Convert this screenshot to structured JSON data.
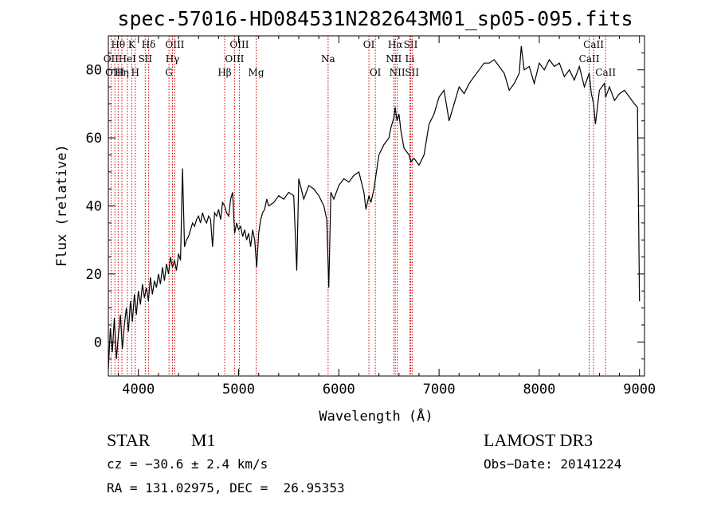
{
  "chart_data": {
    "type": "line",
    "title": "spec-57016-HD084531N282643M01_sp05-095.fits",
    "xlabel": "Wavelength (Å)",
    "ylabel": "Flux (relative)",
    "xlim": [
      3700,
      9050
    ],
    "ylim": [
      -10,
      90
    ],
    "xticks": [
      4000,
      5000,
      6000,
      7000,
      8000,
      9000
    ],
    "yticks": [
      0,
      20,
      40,
      60,
      80
    ],
    "grid": false,
    "series": [
      {
        "x": [
          3700,
          3720,
          3740,
          3760,
          3780,
          3800,
          3820,
          3840,
          3860,
          3880,
          3900,
          3920,
          3940,
          3960,
          3980,
          4000,
          4020,
          4040,
          4060,
          4080,
          4100,
          4120,
          4140,
          4160,
          4180,
          4200,
          4220,
          4240,
          4260,
          4280,
          4300,
          4320,
          4340,
          4360,
          4380,
          4400,
          4420,
          4440,
          4460,
          4480,
          4500,
          4520,
          4540,
          4560,
          4580,
          4600,
          4620,
          4640,
          4660,
          4680,
          4700,
          4720,
          4740,
          4760,
          4780,
          4800,
          4820,
          4840,
          4860,
          4880,
          4900,
          4920,
          4940,
          4960,
          4980,
          5000,
          5020,
          5040,
          5060,
          5080,
          5100,
          5120,
          5140,
          5160,
          5180,
          5200,
          5220,
          5240,
          5260,
          5280,
          5300,
          5350,
          5400,
          5450,
          5500,
          5550,
          5580,
          5600,
          5650,
          5700,
          5750,
          5800,
          5850,
          5880,
          5900,
          5920,
          5950,
          6000,
          6050,
          6100,
          6150,
          6200,
          6250,
          6270,
          6300,
          6320,
          6350,
          6400,
          6450,
          6500,
          6520,
          6550,
          6562,
          6580,
          6600,
          6620,
          6650,
          6700,
          6720,
          6750,
          6800,
          6850,
          6900,
          6950,
          7000,
          7050,
          7100,
          7150,
          7200,
          7250,
          7300,
          7350,
          7400,
          7450,
          7500,
          7550,
          7600,
          7650,
          7700,
          7750,
          7800,
          7820,
          7850,
          7900,
          7950,
          8000,
          8050,
          8100,
          8150,
          8200,
          8250,
          8300,
          8350,
          8400,
          8450,
          8498,
          8520,
          8542,
          8560,
          8600,
          8650,
          8662,
          8700,
          8750,
          8800,
          8850,
          8900,
          8950,
          8980,
          9000
        ],
        "y": [
          -8,
          4,
          -3,
          7,
          -5,
          2,
          8,
          -2,
          5,
          10,
          3,
          12,
          6,
          14,
          8,
          15,
          11,
          17,
          13,
          16,
          12,
          19,
          14,
          18,
          16,
          20,
          17,
          22,
          18,
          23,
          20,
          25,
          22,
          24,
          21,
          26,
          24,
          51,
          28,
          30,
          31,
          33,
          35,
          34,
          36,
          37,
          35,
          38,
          36,
          35,
          37,
          36,
          28,
          38,
          37,
          39,
          36,
          41,
          40,
          38,
          37,
          42,
          44,
          32,
          35,
          33,
          34,
          31,
          33,
          30,
          32,
          28,
          33,
          30,
          22,
          32,
          36,
          38,
          39,
          42,
          40,
          41,
          43,
          42,
          44,
          43,
          21,
          48,
          42,
          46,
          45,
          43,
          40,
          36,
          16,
          44,
          42,
          46,
          48,
          47,
          49,
          50,
          44,
          39,
          43,
          41,
          45,
          55,
          58,
          60,
          63,
          66,
          69,
          65,
          67,
          62,
          57,
          55,
          53,
          54,
          52,
          55,
          64,
          67,
          72,
          74,
          65,
          70,
          75,
          73,
          76,
          78,
          80,
          82,
          82,
          83,
          81,
          79,
          74,
          76,
          79,
          87,
          80,
          81,
          76,
          82,
          80,
          83,
          81,
          82,
          78,
          80,
          77,
          81,
          75,
          79,
          73,
          70,
          64,
          74,
          76,
          72,
          75,
          71,
          73,
          74,
          72,
          70,
          69,
          12
        ]
      }
    ],
    "annotations": [
      {
        "text": "Hθ",
        "x": 3798,
        "row": 0
      },
      {
        "text": "K",
        "x": 3933,
        "row": 0
      },
      {
        "text": "Hδ",
        "x": 4102,
        "row": 0
      },
      {
        "text": "OIII",
        "x": 4363,
        "row": 0
      },
      {
        "text": "OIII",
        "x": 5007,
        "row": 0
      },
      {
        "text": "OI",
        "x": 6300,
        "row": 0
      },
      {
        "text": "Hα",
        "x": 6563,
        "row": 0
      },
      {
        "text": "SII",
        "x": 6717,
        "row": 0
      },
      {
        "text": "CaII",
        "x": 8542,
        "row": 0
      },
      {
        "text": "OII",
        "x": 3727,
        "row": 1
      },
      {
        "text": "HeI",
        "x": 3889,
        "row": 1
      },
      {
        "text": "SII",
        "x": 4068,
        "row": 1
      },
      {
        "text": "Hγ",
        "x": 4340,
        "row": 1
      },
      {
        "text": "OIII",
        "x": 4959,
        "row": 1
      },
      {
        "text": "Na",
        "x": 5893,
        "row": 1
      },
      {
        "text": "NII",
        "x": 6548,
        "row": 1
      },
      {
        "text": "Li",
        "x": 6708,
        "row": 1
      },
      {
        "text": "CaII",
        "x": 8498,
        "row": 1
      },
      {
        "text": "OIII",
        "x": 3765,
        "row": 2
      },
      {
        "text": "Hη",
        "x": 3835,
        "row": 2
      },
      {
        "text": "H",
        "x": 3968,
        "row": 2
      },
      {
        "text": "G",
        "x": 4305,
        "row": 2
      },
      {
        "text": "Hβ",
        "x": 4861,
        "row": 2
      },
      {
        "text": "Mg",
        "x": 5175,
        "row": 2
      },
      {
        "text": "OI",
        "x": 6364,
        "row": 2
      },
      {
        "text": "NII",
        "x": 6583,
        "row": 2
      },
      {
        "text": "SII",
        "x": 6731,
        "row": 2
      },
      {
        "text": "CaII",
        "x": 8662,
        "row": 2
      }
    ],
    "line_color": "#000000",
    "marker_color": "#cc0000"
  },
  "info": {
    "object_class": "STAR",
    "subclass": "M1",
    "survey": "LAMOST DR3",
    "cz": "cz = −30.6 ± 2.4 km/s",
    "obs_date": "Obs−Date: 20141224",
    "radec": "RA = 131.02975, DEC =  26.95353"
  }
}
